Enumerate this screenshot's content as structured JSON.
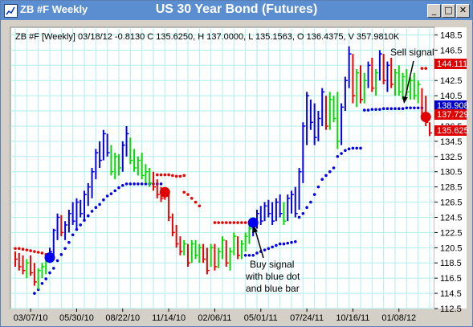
{
  "window": {
    "title": "ZB #F Weekly",
    "chart_title": "US 30 Year Bond (Futures)",
    "buttons": [
      "_",
      "□",
      "✕"
    ]
  },
  "info_line": "ZB #F [Weekly] 03/18/12  -0.8130 C 135.6250, H 137.0000, L 135.1563, O 136.4375, V 357.9810K",
  "annotations": {
    "sell": "Sell signal",
    "buy": [
      "Buy signal",
      "with blue dot",
      "and blue bar"
    ]
  },
  "colors": {
    "up": "#00dd00",
    "down": "#ee0000",
    "blue": "#0000ee",
    "grid": "#aeeeee",
    "plot_bg": "#ffffff",
    "badge_red": "#e00000",
    "badge_blue": "#0000cc"
  },
  "chart_data": {
    "type": "ohlc",
    "title": "US 30 Year Bond (Futures)",
    "y_ticks": [
      112.5,
      114.5,
      116.5,
      118.5,
      120.5,
      122.5,
      124.5,
      126.5,
      128.5,
      130.5,
      132.5,
      134.5,
      136.5,
      138.5,
      140.5,
      142.5,
      144.5,
      146.5,
      148.5
    ],
    "ylim": [
      112.5,
      149.5
    ],
    "x_labels": [
      {
        "label": "03/07/10",
        "bar": 4
      },
      {
        "label": "05/30/10",
        "bar": 16
      },
      {
        "label": "08/22/10",
        "bar": 28
      },
      {
        "label": "11/14/10",
        "bar": 40
      },
      {
        "label": "02/06/11",
        "bar": 52
      },
      {
        "label": "05/01/11",
        "bar": 64
      },
      {
        "label": "07/24/11",
        "bar": 76
      },
      {
        "label": "10/16/11",
        "bar": 88
      },
      {
        "label": "01/08/12",
        "bar": 100
      }
    ],
    "price_badges": [
      {
        "value": "144.111",
        "type": "red"
      },
      {
        "value": "138.908",
        "type": "blue"
      },
      {
        "value": "137.729",
        "type": "red"
      },
      {
        "value": "135.625",
        "type": "red"
      }
    ],
    "signals": [
      {
        "type": "buy",
        "bar": 9,
        "price": 119.2
      },
      {
        "type": "sell",
        "bar": 39,
        "price": 127.8
      },
      {
        "type": "buy",
        "bar": 62,
        "price": 123.8
      },
      {
        "type": "sell",
        "bar": 107,
        "price": 137.7
      }
    ],
    "bars": [
      {
        "h": 120.0,
        "l": 118.0,
        "c": 119.0,
        "color": "red"
      },
      {
        "h": 119.8,
        "l": 117.5,
        "c": 118.0,
        "color": "red"
      },
      {
        "h": 119.5,
        "l": 117.0,
        "c": 117.5,
        "color": "red"
      },
      {
        "h": 119.0,
        "l": 116.5,
        "c": 118.5,
        "color": "green"
      },
      {
        "h": 119.5,
        "l": 116.8,
        "c": 117.2,
        "color": "red"
      },
      {
        "h": 118.5,
        "l": 115.5,
        "c": 116.0,
        "color": "red"
      },
      {
        "h": 117.8,
        "l": 115.0,
        "c": 117.5,
        "color": "green"
      },
      {
        "h": 118.5,
        "l": 116.5,
        "c": 118.0,
        "color": "green"
      },
      {
        "h": 119.0,
        "l": 117.0,
        "c": 118.8,
        "color": "green"
      },
      {
        "h": 120.5,
        "l": 118.5,
        "c": 120.0,
        "color": "blue"
      },
      {
        "h": 123.0,
        "l": 119.5,
        "c": 122.8,
        "color": "blue"
      },
      {
        "h": 125.0,
        "l": 121.5,
        "c": 124.5,
        "color": "blue"
      },
      {
        "h": 124.8,
        "l": 122.0,
        "c": 122.5,
        "color": "red"
      },
      {
        "h": 124.0,
        "l": 121.5,
        "c": 123.5,
        "color": "blue"
      },
      {
        "h": 125.5,
        "l": 122.5,
        "c": 125.0,
        "color": "blue"
      },
      {
        "h": 126.5,
        "l": 123.5,
        "c": 124.0,
        "color": "blue"
      },
      {
        "h": 127.0,
        "l": 123.0,
        "c": 126.5,
        "color": "blue"
      },
      {
        "h": 126.8,
        "l": 124.5,
        "c": 125.0,
        "color": "blue"
      },
      {
        "h": 128.0,
        "l": 124.0,
        "c": 127.5,
        "color": "blue"
      },
      {
        "h": 129.0,
        "l": 126.0,
        "c": 128.5,
        "color": "blue"
      },
      {
        "h": 131.0,
        "l": 127.0,
        "c": 130.5,
        "color": "blue"
      },
      {
        "h": 133.5,
        "l": 129.5,
        "c": 133.0,
        "color": "blue"
      },
      {
        "h": 134.5,
        "l": 131.0,
        "c": 132.0,
        "color": "blue"
      },
      {
        "h": 136.0,
        "l": 132.0,
        "c": 135.5,
        "color": "blue"
      },
      {
        "h": 135.5,
        "l": 132.5,
        "c": 133.0,
        "color": "blue"
      },
      {
        "h": 134.0,
        "l": 130.0,
        "c": 130.5,
        "color": "green"
      },
      {
        "h": 133.0,
        "l": 129.5,
        "c": 132.5,
        "color": "green"
      },
      {
        "h": 132.8,
        "l": 130.0,
        "c": 131.0,
        "color": "green"
      },
      {
        "h": 134.5,
        "l": 130.5,
        "c": 134.0,
        "color": "blue"
      },
      {
        "h": 136.5,
        "l": 132.5,
        "c": 135.5,
        "color": "blue"
      },
      {
        "h": 135.0,
        "l": 131.5,
        "c": 132.0,
        "color": "green"
      },
      {
        "h": 133.5,
        "l": 130.5,
        "c": 131.0,
        "color": "green"
      },
      {
        "h": 132.5,
        "l": 130.0,
        "c": 132.0,
        "color": "green"
      },
      {
        "h": 133.0,
        "l": 129.5,
        "c": 130.0,
        "color": "green"
      },
      {
        "h": 131.5,
        "l": 129.0,
        "c": 130.5,
        "color": "green"
      },
      {
        "h": 131.0,
        "l": 128.5,
        "c": 129.0,
        "color": "green"
      },
      {
        "h": 130.5,
        "l": 128.0,
        "c": 128.5,
        "color": "red"
      },
      {
        "h": 129.5,
        "l": 127.0,
        "c": 127.5,
        "color": "red"
      },
      {
        "h": 128.5,
        "l": 126.5,
        "c": 127.0,
        "color": "red"
      },
      {
        "h": 128.3,
        "l": 126.8,
        "c": 127.5,
        "color": "red"
      },
      {
        "h": 128.0,
        "l": 124.0,
        "c": 124.5,
        "color": "red"
      },
      {
        "h": 125.0,
        "l": 122.0,
        "c": 122.5,
        "color": "red"
      },
      {
        "h": 123.5,
        "l": 120.5,
        "c": 121.0,
        "color": "red"
      },
      {
        "h": 122.0,
        "l": 119.5,
        "c": 120.0,
        "color": "red"
      },
      {
        "h": 121.5,
        "l": 119.5,
        "c": 121.0,
        "color": "green"
      },
      {
        "h": 121.0,
        "l": 118.0,
        "c": 118.5,
        "color": "red"
      },
      {
        "h": 121.5,
        "l": 118.5,
        "c": 121.0,
        "color": "green"
      },
      {
        "h": 121.5,
        "l": 119.0,
        "c": 119.5,
        "color": "green"
      },
      {
        "h": 121.0,
        "l": 118.5,
        "c": 120.5,
        "color": "green"
      },
      {
        "h": 121.0,
        "l": 118.5,
        "c": 119.0,
        "color": "red"
      },
      {
        "h": 120.5,
        "l": 117.0,
        "c": 117.5,
        "color": "red"
      },
      {
        "h": 121.0,
        "l": 118.0,
        "c": 120.5,
        "color": "green"
      },
      {
        "h": 121.0,
        "l": 117.5,
        "c": 118.0,
        "color": "red"
      },
      {
        "h": 120.5,
        "l": 117.8,
        "c": 120.0,
        "color": "green"
      },
      {
        "h": 122.0,
        "l": 119.0,
        "c": 121.5,
        "color": "green"
      },
      {
        "h": 121.5,
        "l": 118.0,
        "c": 118.5,
        "color": "red"
      },
      {
        "h": 120.5,
        "l": 117.5,
        "c": 120.0,
        "color": "green"
      },
      {
        "h": 122.5,
        "l": 119.5,
        "c": 122.0,
        "color": "green"
      },
      {
        "h": 122.0,
        "l": 119.0,
        "c": 119.5,
        "color": "red"
      },
      {
        "h": 121.5,
        "l": 119.0,
        "c": 121.0,
        "color": "green"
      },
      {
        "h": 122.5,
        "l": 120.0,
        "c": 122.0,
        "color": "green"
      },
      {
        "h": 123.5,
        "l": 121.0,
        "c": 123.0,
        "color": "green"
      },
      {
        "h": 124.5,
        "l": 122.0,
        "c": 124.0,
        "color": "blue"
      },
      {
        "h": 125.5,
        "l": 123.0,
        "c": 125.0,
        "color": "blue"
      },
      {
        "h": 126.0,
        "l": 123.5,
        "c": 124.0,
        "color": "blue"
      },
      {
        "h": 126.5,
        "l": 124.0,
        "c": 126.0,
        "color": "blue"
      },
      {
        "h": 126.8,
        "l": 124.5,
        "c": 125.0,
        "color": "blue"
      },
      {
        "h": 126.5,
        "l": 123.5,
        "c": 124.0,
        "color": "blue"
      },
      {
        "h": 127.0,
        "l": 124.0,
        "c": 126.5,
        "color": "blue"
      },
      {
        "h": 127.5,
        "l": 124.5,
        "c": 125.0,
        "color": "blue"
      },
      {
        "h": 126.5,
        "l": 123.5,
        "c": 124.0,
        "color": "green"
      },
      {
        "h": 127.5,
        "l": 124.0,
        "c": 127.0,
        "color": "blue"
      },
      {
        "h": 128.0,
        "l": 125.0,
        "c": 127.5,
        "color": "blue"
      },
      {
        "h": 128.5,
        "l": 124.5,
        "c": 125.0,
        "color": "blue"
      },
      {
        "h": 131.0,
        "l": 125.5,
        "c": 130.5,
        "color": "blue"
      },
      {
        "h": 137.0,
        "l": 129.0,
        "c": 136.5,
        "color": "blue"
      },
      {
        "h": 141.0,
        "l": 134.0,
        "c": 140.5,
        "color": "blue"
      },
      {
        "h": 140.0,
        "l": 136.0,
        "c": 137.0,
        "color": "blue"
      },
      {
        "h": 139.5,
        "l": 134.0,
        "c": 135.0,
        "color": "blue"
      },
      {
        "h": 138.5,
        "l": 134.5,
        "c": 137.5,
        "color": "blue"
      },
      {
        "h": 141.5,
        "l": 136.5,
        "c": 141.0,
        "color": "blue"
      },
      {
        "h": 140.5,
        "l": 136.0,
        "c": 136.5,
        "color": "red"
      },
      {
        "h": 141.0,
        "l": 136.0,
        "c": 140.0,
        "color": "green"
      },
      {
        "h": 140.5,
        "l": 137.0,
        "c": 137.5,
        "color": "green"
      },
      {
        "h": 141.0,
        "l": 133.5,
        "c": 134.5,
        "color": "green"
      },
      {
        "h": 139.5,
        "l": 134.0,
        "c": 139.0,
        "color": "blue"
      },
      {
        "h": 143.0,
        "l": 138.5,
        "c": 142.5,
        "color": "blue"
      },
      {
        "h": 147.0,
        "l": 141.5,
        "c": 146.0,
        "color": "blue"
      },
      {
        "h": 146.0,
        "l": 139.5,
        "c": 140.5,
        "color": "red"
      },
      {
        "h": 144.0,
        "l": 139.0,
        "c": 143.5,
        "color": "green"
      },
      {
        "h": 144.5,
        "l": 139.5,
        "c": 140.0,
        "color": "red"
      },
      {
        "h": 143.5,
        "l": 139.5,
        "c": 142.5,
        "color": "green"
      },
      {
        "h": 145.0,
        "l": 141.5,
        "c": 144.5,
        "color": "blue"
      },
      {
        "h": 145.5,
        "l": 141.0,
        "c": 141.5,
        "color": "red"
      },
      {
        "h": 144.0,
        "l": 140.5,
        "c": 143.5,
        "color": "green"
      },
      {
        "h": 146.5,
        "l": 142.5,
        "c": 146.0,
        "color": "blue"
      },
      {
        "h": 146.0,
        "l": 142.0,
        "c": 142.5,
        "color": "red"
      },
      {
        "h": 145.0,
        "l": 141.0,
        "c": 144.5,
        "color": "blue"
      },
      {
        "h": 145.5,
        "l": 141.5,
        "c": 142.0,
        "color": "red"
      },
      {
        "h": 144.0,
        "l": 140.5,
        "c": 143.5,
        "color": "green"
      },
      {
        "h": 144.5,
        "l": 140.5,
        "c": 141.0,
        "color": "green"
      },
      {
        "h": 143.5,
        "l": 140.0,
        "c": 143.0,
        "color": "green"
      },
      {
        "h": 144.0,
        "l": 140.5,
        "c": 141.0,
        "color": "green"
      },
      {
        "h": 143.0,
        "l": 140.0,
        "c": 142.5,
        "color": "green"
      },
      {
        "h": 143.5,
        "l": 140.0,
        "c": 140.5,
        "color": "green"
      },
      {
        "h": 142.5,
        "l": 139.5,
        "c": 142.0,
        "color": "green"
      },
      {
        "h": 141.5,
        "l": 137.5,
        "c": 138.0,
        "color": "red"
      },
      {
        "h": 140.5,
        "l": 136.5,
        "c": 137.0,
        "color": "red"
      },
      {
        "h": 137.0,
        "l": 135.2,
        "c": 135.6,
        "color": "red"
      }
    ],
    "stop_dots": [
      {
        "color": "red",
        "start": 0,
        "end": 8,
        "values": [
          120.4,
          120.4,
          120.3,
          120.2,
          120.1,
          120.0,
          119.9,
          119.8,
          119.6
        ]
      },
      {
        "color": "blue",
        "start": 5,
        "end": 38,
        "values": [
          114.5,
          115.0,
          115.8,
          116.4,
          117.2,
          117.8,
          118.8,
          119.6,
          120.4,
          121.2,
          122.2,
          122.9,
          123.5,
          124.1,
          124.7,
          125.3,
          125.8,
          126.2,
          126.8,
          127.3,
          127.6,
          128.0,
          128.4,
          128.7,
          128.9,
          128.9,
          128.9,
          128.9,
          128.9,
          128.9,
          128.9,
          128.9,
          128.9,
          128.9
        ]
      },
      {
        "color": "red",
        "start": 37,
        "end": 44,
        "values": [
          130.1,
          130.1,
          130.1,
          130.1,
          130.0,
          129.9,
          129.9,
          130.0
        ]
      },
      {
        "color": "red",
        "start": 44,
        "end": 48,
        "values": [
          127.8,
          127.5,
          127.0,
          126.5,
          126.0
        ]
      },
      {
        "color": "red",
        "start": 52,
        "end": 62,
        "values": [
          123.8,
          123.8,
          123.8,
          123.8,
          123.8,
          123.8,
          123.8,
          123.8,
          123.8,
          123.8,
          123.8
        ]
      },
      {
        "color": "blue",
        "start": 60,
        "end": 73,
        "values": [
          119.5,
          119.5,
          119.5,
          119.8,
          120.0,
          120.2,
          120.4,
          120.6,
          120.8,
          121.0,
          121.0,
          121.1,
          121.2,
          121.3
        ]
      },
      {
        "color": "blue",
        "start": 74,
        "end": 83,
        "values": [
          124.5,
          125.0,
          125.8,
          126.5,
          127.5,
          128.5,
          129.5,
          130.0,
          130.5,
          131.0
        ]
      },
      {
        "color": "blue",
        "start": 84,
        "end": 90,
        "values": [
          132.5,
          132.9,
          133.3,
          133.5,
          133.6,
          133.6,
          133.6
        ]
      },
      {
        "color": "blue",
        "start": 91,
        "end": 106,
        "values": [
          138.6,
          138.6,
          138.7,
          138.7,
          138.7,
          138.8,
          138.8,
          138.8,
          138.8,
          138.8,
          138.8,
          138.9,
          138.9,
          138.9,
          138.9,
          138.9
        ]
      },
      {
        "color": "red",
        "start": 106,
        "end": 107,
        "values": [
          144.1,
          144.1
        ]
      }
    ]
  }
}
